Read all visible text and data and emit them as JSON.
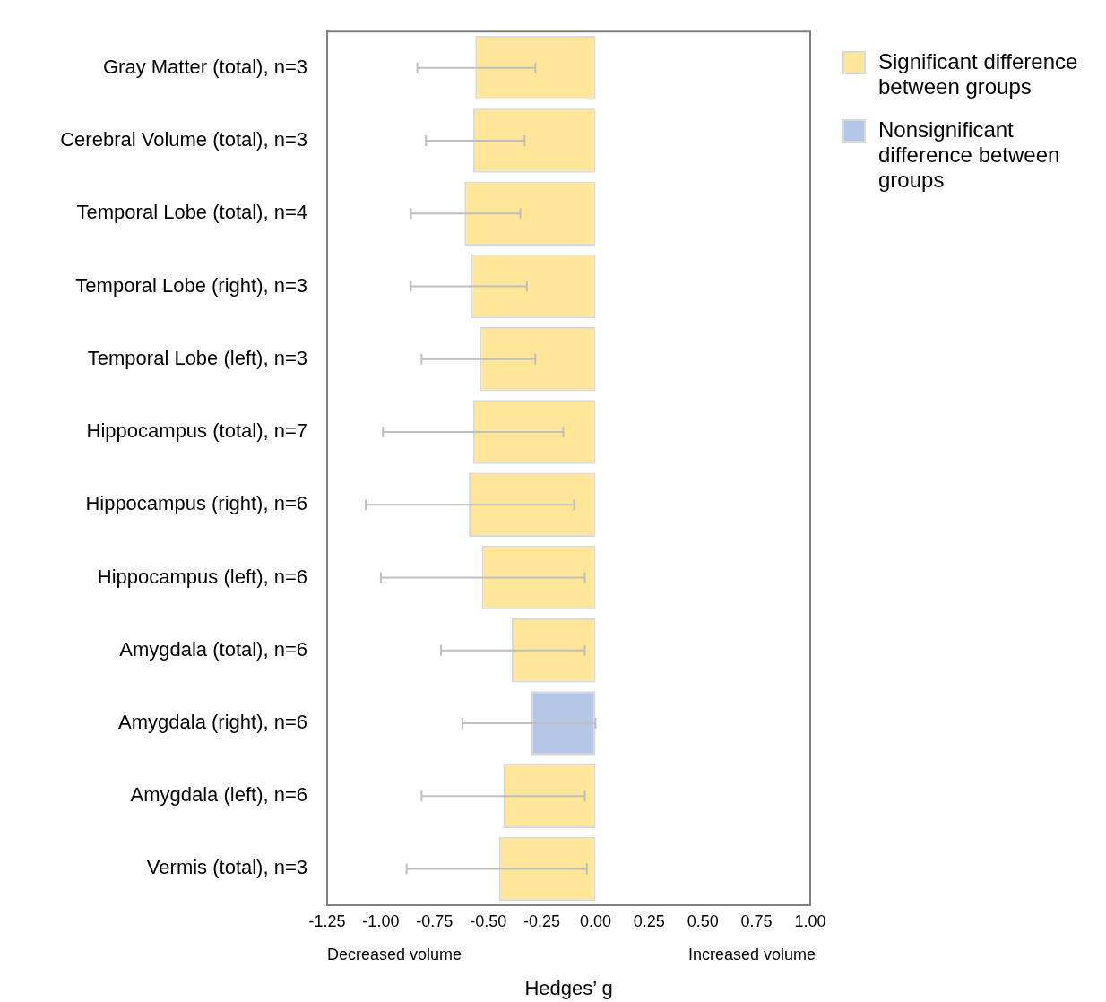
{
  "chart_data": {
    "type": "bar",
    "orientation": "horizontal",
    "xlabel": "Hedges’ g",
    "categories": [
      "Gray Matter (total), n=3",
      "Cerebral Volume (total), n=3",
      "Temporal Lobe (total), n=4",
      "Temporal Lobe (right), n=3",
      "Temporal Lobe (left), n=3",
      "Hippocampus (total), n=7",
      "Hippocampus (right), n=6",
      "Hippocampus (left), n=6",
      "Amygdala (total), n=6",
      "Amygdala (right), n=6",
      "Amygdala (left), n=6",
      "Vermis (total), n=3"
    ],
    "series": [
      {
        "name": "Significant difference between groups",
        "color": "#ffe699",
        "values": [
          -0.56,
          -0.57,
          -0.61,
          -0.58,
          -0.54,
          -0.57,
          -0.59,
          -0.53,
          -0.39,
          null,
          -0.43,
          -0.45
        ],
        "errors": [
          [
            -0.83,
            -0.28
          ],
          [
            -0.79,
            -0.33
          ],
          [
            -0.86,
            -0.35
          ],
          [
            -0.86,
            -0.32
          ],
          [
            -0.81,
            -0.28
          ],
          [
            -0.99,
            -0.15
          ],
          [
            -1.07,
            -0.1
          ],
          [
            -1.0,
            -0.05
          ],
          [
            -0.72,
            -0.05
          ],
          null,
          [
            -0.81,
            -0.05
          ],
          [
            -0.88,
            -0.04
          ]
        ]
      },
      {
        "name": "Nonsignificant difference between groups",
        "color": "#b4c7e7",
        "values": [
          null,
          null,
          null,
          null,
          null,
          null,
          null,
          null,
          null,
          -0.3,
          null,
          null
        ],
        "errors": [
          null,
          null,
          null,
          null,
          null,
          null,
          null,
          null,
          null,
          [
            -0.62,
            0.0
          ],
          null,
          null
        ]
      }
    ],
    "xlim": [
      -1.25,
      1.0
    ],
    "xticks": [
      {
        "value": -1.25,
        "label": "-1.25"
      },
      {
        "value": -1.0,
        "label": "-1.00"
      },
      {
        "value": -0.75,
        "label": "-0.75"
      },
      {
        "value": -0.5,
        "label": "-0.50"
      },
      {
        "value": -0.25,
        "label": "-0.25"
      },
      {
        "value": 0,
        "label": "0.00"
      },
      {
        "value": 0.25,
        "label": "0.25"
      },
      {
        "value": 0.5,
        "label": "0.50"
      },
      {
        "value": 0.75,
        "label": "0.75"
      },
      {
        "value": 1.0,
        "label": "1.00"
      }
    ],
    "annotations": [
      "Decreased volume",
      "Increased volume"
    ],
    "legend": "right",
    "grid": false
  }
}
